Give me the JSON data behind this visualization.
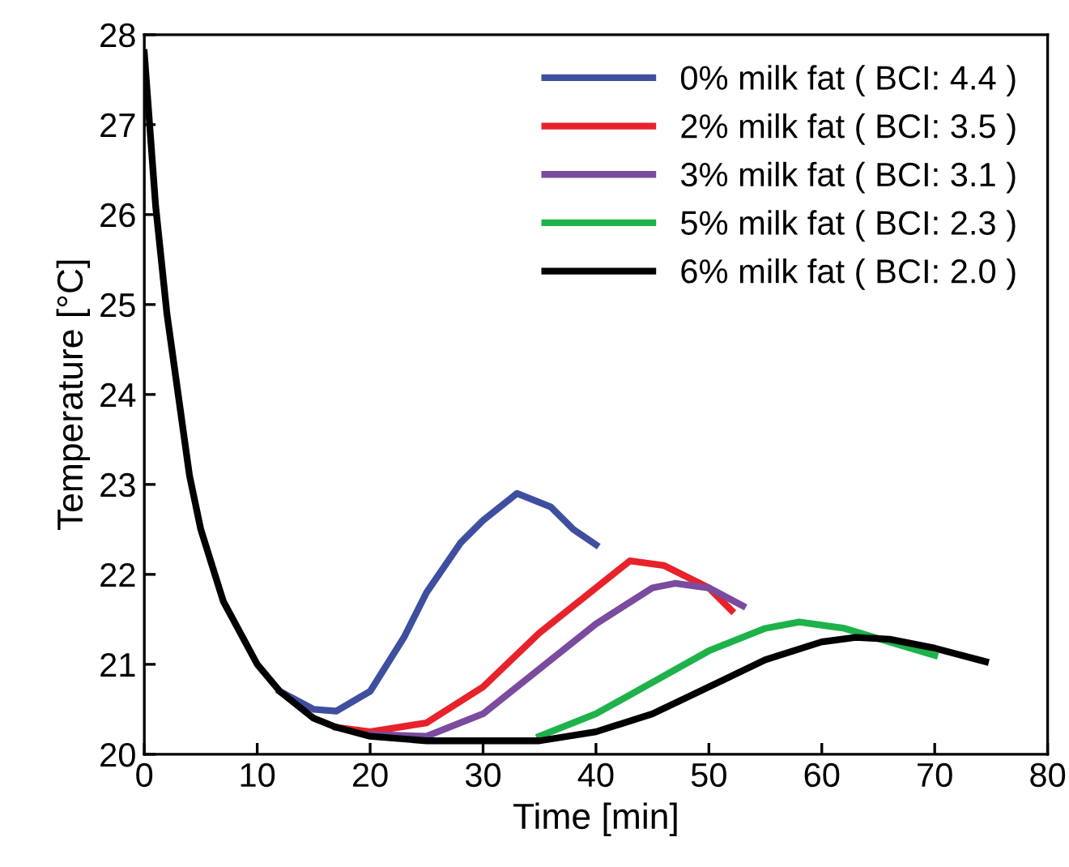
{
  "chart_data": {
    "type": "line",
    "xlabel": "Time [min]",
    "ylabel": "Temperature [°C]",
    "xlim": [
      0,
      80
    ],
    "ylim": [
      20,
      28
    ],
    "xticks": [
      0,
      10,
      20,
      30,
      40,
      50,
      60,
      70,
      80
    ],
    "yticks": [
      20,
      21,
      22,
      23,
      24,
      25,
      26,
      27,
      28
    ],
    "grid": false,
    "legend": "top right",
    "line_style": "solid",
    "marker": "none",
    "series": [
      {
        "name": "0% milk fat ( BCI: 4.4 )",
        "color": "#3f4fa0",
        "x": [
          12,
          15,
          17,
          20,
          23,
          25,
          28,
          30,
          33,
          36,
          38,
          40
        ],
        "values": [
          20.7,
          20.5,
          20.48,
          20.7,
          21.3,
          21.8,
          22.35,
          22.6,
          22.9,
          22.75,
          22.5,
          22.33
        ]
      },
      {
        "name": "2% milk fat ( BCI: 3.5 )",
        "color": "#e8222a",
        "x": [
          17,
          20,
          25,
          30,
          35,
          40,
          43,
          46,
          50,
          52
        ],
        "values": [
          20.3,
          20.25,
          20.35,
          20.75,
          21.35,
          21.85,
          22.15,
          22.1,
          21.85,
          21.6
        ]
      },
      {
        "name": "3% milk fat ( BCI: 3.1 )",
        "color": "#7a4b9e",
        "x": [
          20,
          25,
          30,
          35,
          40,
          45,
          47,
          50,
          53
        ],
        "values": [
          20.22,
          20.2,
          20.45,
          20.95,
          21.45,
          21.85,
          21.9,
          21.85,
          21.65
        ]
      },
      {
        "name": "5% milk fat ( BCI: 2.3 )",
        "color": "#1fb24a",
        "x": [
          35,
          40,
          45,
          50,
          55,
          58,
          62,
          66,
          70
        ],
        "values": [
          20.2,
          20.45,
          20.8,
          21.15,
          21.4,
          21.47,
          21.4,
          21.25,
          21.1
        ]
      },
      {
        "name": "6% milk fat ( BCI: 2.0 )",
        "color": "#000000",
        "x": [
          0,
          1,
          2,
          3,
          4,
          5,
          7,
          10,
          12,
          15,
          17,
          20,
          25,
          30,
          35,
          40,
          45,
          50,
          55,
          60,
          63,
          66,
          70,
          74.5
        ],
        "values": [
          27.8,
          26.1,
          24.9,
          24.0,
          23.1,
          22.5,
          21.7,
          21.0,
          20.7,
          20.4,
          20.3,
          20.2,
          20.15,
          20.15,
          20.15,
          20.25,
          20.45,
          20.75,
          21.05,
          21.25,
          21.3,
          21.28,
          21.18,
          21.03
        ]
      }
    ]
  }
}
